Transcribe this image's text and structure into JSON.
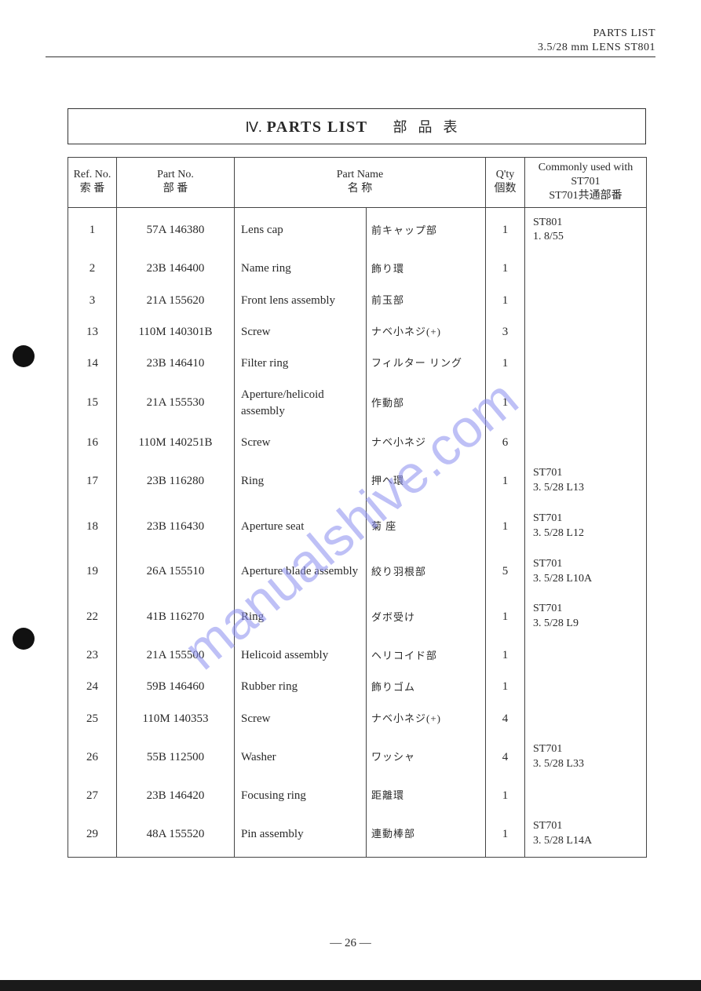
{
  "header": {
    "line1": "PARTS LIST",
    "line2": "3.5/28 mm LENS ST801"
  },
  "title": {
    "roman": "Ⅳ.",
    "en": "PARTS LIST",
    "jp": "部品表"
  },
  "columns": {
    "ref_en": "Ref. No.",
    "ref_jp": "索 番",
    "partno_en": "Part No.",
    "partno_jp": "部   番",
    "name_en": "Part Name",
    "name_jp": "名   称",
    "qty_en": "Q'ty",
    "qty_jp": "個数",
    "common_en": "Commonly used with ST701",
    "common_jp": "ST701共通部番"
  },
  "rows": [
    {
      "ref": "1",
      "pno": "57A 146380",
      "en": "Lens cap",
      "jp": "前キャップ部",
      "qty": "1",
      "com": "ST801\n1. 8/55"
    },
    {
      "ref": "2",
      "pno": "23B 146400",
      "en": "Name ring",
      "jp": "飾り環",
      "qty": "1",
      "com": ""
    },
    {
      "ref": "3",
      "pno": "21A 155620",
      "en": "Front lens assembly",
      "jp": "前玉部",
      "qty": "1",
      "com": ""
    },
    {
      "ref": "13",
      "pno": "110M 140301B",
      "en": "Screw",
      "jp": "ナベ小ネジ(+)",
      "qty": "3",
      "com": ""
    },
    {
      "ref": "14",
      "pno": "23B 146410",
      "en": "Filter ring",
      "jp": "フィルター リング",
      "qty": "1",
      "com": ""
    },
    {
      "ref": "15",
      "pno": "21A 155530",
      "en": "Aperture/helicoid assembly",
      "jp": "作動部",
      "qty": "1",
      "com": ""
    },
    {
      "ref": "16",
      "pno": "110M 140251B",
      "en": "Screw",
      "jp": "ナベ小ネジ",
      "qty": "6",
      "com": ""
    },
    {
      "ref": "17",
      "pno": "23B 116280",
      "en": "Ring",
      "jp": "押へ環",
      "qty": "1",
      "com": "ST701\n3. 5/28 L13"
    },
    {
      "ref": "18",
      "pno": "23B 116430",
      "en": "Aperture seat",
      "jp": "菊 座",
      "qty": "1",
      "com": "ST701\n3. 5/28 L12"
    },
    {
      "ref": "19",
      "pno": "26A 155510",
      "en": "Aperture blade assembly",
      "jp": "絞り羽根部",
      "qty": "5",
      "com": "ST701\n3. 5/28 L10A"
    },
    {
      "ref": "22",
      "pno": "41B 116270",
      "en": "Ring",
      "jp": "ダボ受け",
      "qty": "1",
      "com": "ST701\n3. 5/28 L9"
    },
    {
      "ref": "23",
      "pno": "21A 155500",
      "en": "Helicoid assembly",
      "jp": "ヘリコイド部",
      "qty": "1",
      "com": ""
    },
    {
      "ref": "24",
      "pno": "59B 146460",
      "en": "Rubber ring",
      "jp": "飾りゴム",
      "qty": "1",
      "com": ""
    },
    {
      "ref": "25",
      "pno": "110M 140353",
      "en": "Screw",
      "jp": "ナベ小ネジ(+)",
      "qty": "4",
      "com": ""
    },
    {
      "ref": "26",
      "pno": "55B 112500",
      "en": "Washer",
      "jp": "ワッシャ",
      "qty": "4",
      "com": "ST701\n3. 5/28 L33"
    },
    {
      "ref": "27",
      "pno": "23B 146420",
      "en": "Focusing ring",
      "jp": "距離環",
      "qty": "1",
      "com": ""
    },
    {
      "ref": "29",
      "pno": "48A 155520",
      "en": "Pin assembly",
      "jp": "連動棒部",
      "qty": "1",
      "com": "ST701\n3. 5/28 L14A"
    }
  ],
  "page_number": "— 26 —",
  "watermark": "manualshive.com"
}
